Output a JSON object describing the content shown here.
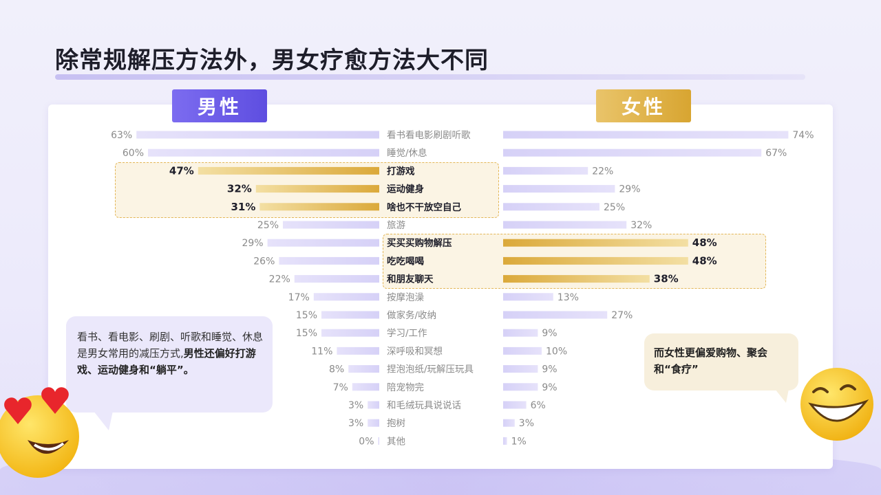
{
  "title": "除常规解压方法外，男女疗愈方法大不同",
  "male_label": "男性",
  "female_label": "女性",
  "colors": {
    "normal_bar": "#d6d1f7",
    "highlight_bar": "#dba93a",
    "label_gray": "#8a8a8a",
    "label_dark": "#1e1e2a"
  },
  "chart_data": {
    "type": "bar",
    "orientation": "horizontal-butterfly",
    "categories": [
      "看书看电影刷剧听歌",
      "睡觉/休息",
      "打游戏",
      "运动健身",
      "啥也不干放空自己",
      "旅游",
      "买买买购物解压",
      "吃吃喝喝",
      "和朋友聊天",
      "按摩泡澡",
      "做家务/收纳",
      "学习/工作",
      "深呼吸和冥想",
      "捏泡泡纸/玩解压玩具",
      "陪宠物完",
      "和毛绒玩具说说话",
      "抱树",
      "其他"
    ],
    "series": [
      {
        "name": "男性",
        "values": [
          63,
          60,
          47,
          32,
          31,
          25,
          29,
          26,
          22,
          17,
          15,
          15,
          11,
          8,
          7,
          3,
          3,
          0
        ],
        "highlight": [
          2,
          3,
          4
        ]
      },
      {
        "name": "女性",
        "values": [
          74,
          67,
          22,
          29,
          25,
          32,
          48,
          48,
          38,
          13,
          27,
          9,
          10,
          9,
          9,
          6,
          3,
          1
        ],
        "highlight": [
          6,
          7,
          8
        ]
      }
    ],
    "value_suffix": "%",
    "xlim": [
      0,
      80
    ]
  },
  "callout_left": {
    "text_plain": "看书、看电影、刷剧、听歌和睡觉、休息是男女常用的减压方式,",
    "text_bold": "男性还偏好打游戏、运动健身和“躺平”。"
  },
  "callout_right": {
    "text": "而女性更偏爱购物、聚会和“食疗”"
  }
}
